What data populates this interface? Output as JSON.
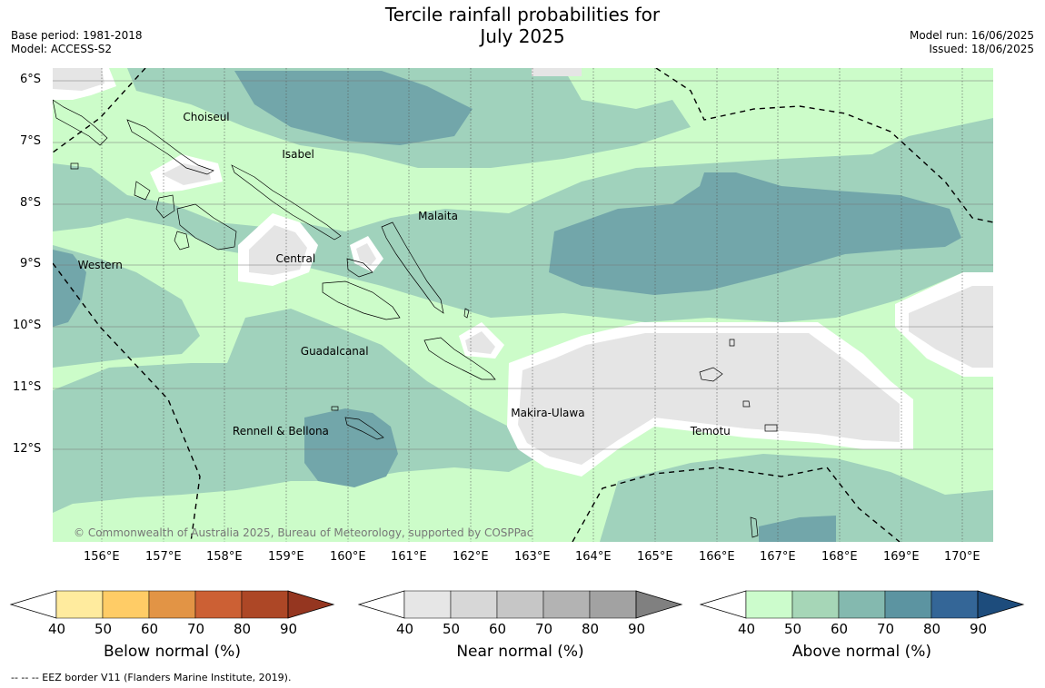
{
  "header": {
    "title_line1": "Tercile rainfall probabilities for",
    "title_line2": "July 2025",
    "base_period": "Base period: 1981-2018",
    "model": "Model: ACCESS-S2",
    "model_run": "Model run: 16/06/2025",
    "issued": "Issued: 18/06/2025"
  },
  "map": {
    "lon_range": [
      155.3,
      170.5
    ],
    "lat_range": [
      -13.5,
      -5.8
    ],
    "lat_ticks": [
      "6°S",
      "7°S",
      "8°S",
      "9°S",
      "10°S",
      "11°S",
      "12°S"
    ],
    "lon_ticks": [
      "156°E",
      "157°E",
      "158°E",
      "159°E",
      "160°E",
      "161°E",
      "162°E",
      "163°E",
      "164°E",
      "165°E",
      "166°E",
      "167°E",
      "168°E",
      "169°E",
      "170°E"
    ],
    "regions": [
      {
        "name": "Choiseul",
        "lon": 157.7,
        "lat": -6.6
      },
      {
        "name": "Isabel",
        "lon": 159.3,
        "lat": -7.2
      },
      {
        "name": "Malaita",
        "lon": 161.5,
        "lat": -8.2
      },
      {
        "name": "Western",
        "lon": 156.0,
        "lat": -9.0
      },
      {
        "name": "Central",
        "lon": 159.2,
        "lat": -8.9
      },
      {
        "name": "Guadalcanal",
        "lon": 159.6,
        "lat": -10.4
      },
      {
        "name": "Makira-Ulawa",
        "lon": 163.0,
        "lat": -11.4
      },
      {
        "name": "Temotu",
        "lon": 165.9,
        "lat": -11.7
      },
      {
        "name": "Rennell & Bellona",
        "lon": 158.5,
        "lat": -11.7
      }
    ],
    "copyright": "© Commonwealth of Australia 2025, Bureau of Meteorology, supported by COSPPac",
    "colors": {
      "above_40_50": "#ccfcc9",
      "above_50_60": "#a0d2bc",
      "above_60_70": "#72a6aa",
      "near_40_50": "#e5e5e5",
      "land_outline": "#000000",
      "gridline": "#555555"
    }
  },
  "colorbars": [
    {
      "label": "Below normal (%)",
      "ticks": [
        "40",
        "50",
        "60",
        "70",
        "80",
        "90"
      ],
      "colors": [
        "#ffeb9e",
        "#ffcc66",
        "#e29445",
        "#cc6034",
        "#ad4726",
        "#953620"
      ]
    },
    {
      "label": "Near normal (%)",
      "ticks": [
        "40",
        "50",
        "60",
        "70",
        "80",
        "90"
      ],
      "colors": [
        "#e6e6e6",
        "#d7d7d7",
        "#c6c6c6",
        "#b3b3b3",
        "#a2a2a2",
        "#808080"
      ]
    },
    {
      "label": "Above normal (%)",
      "ticks": [
        "40",
        "50",
        "60",
        "70",
        "80",
        "90"
      ],
      "colors": [
        "#ccfccc",
        "#a6d6b7",
        "#84b9af",
        "#5c94a1",
        "#346697",
        "#1d4c7c"
      ]
    }
  ],
  "footer": {
    "eez_legend": "--  --  -- EEZ border V11 (Flanders Marine Institute, 2019)."
  }
}
